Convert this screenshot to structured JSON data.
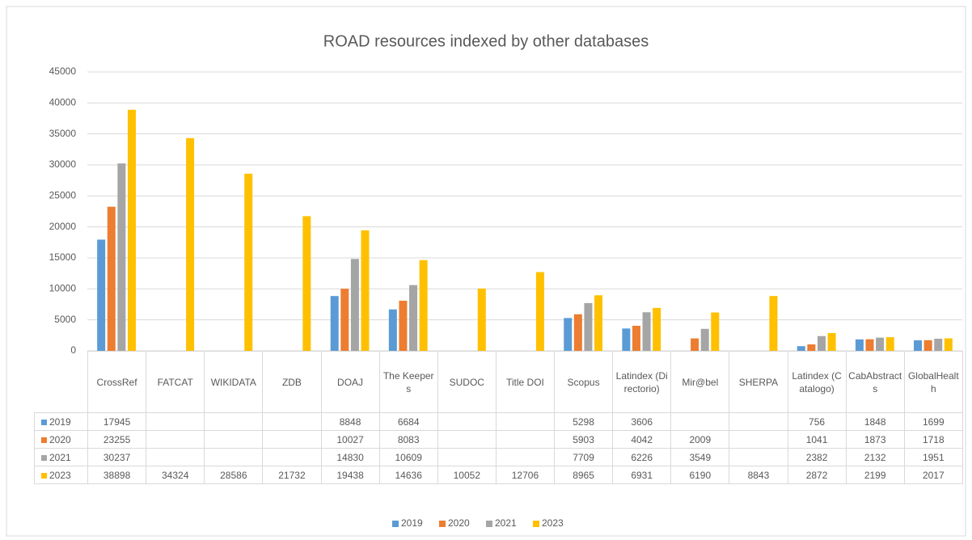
{
  "chart_data": {
    "type": "bar",
    "title": "ROAD resources indexed by other databases",
    "categories": [
      "CrossRef",
      "FATCAT",
      "WIKIDATA",
      "ZDB",
      "DOAJ",
      "The Keepers",
      "SUDOC",
      "Title DOI",
      "Scopus",
      "Latindex (Directorio)",
      "Mir@bel",
      "SHERPA",
      "Latindex (Catalogo)",
      "CabAbstracts",
      "GlobalHealth"
    ],
    "series": [
      {
        "name": "2019",
        "color": "#5b9bd5",
        "values": [
          17945,
          null,
          null,
          null,
          8848,
          6684,
          null,
          null,
          5298,
          3606,
          null,
          null,
          756,
          1848,
          1699
        ]
      },
      {
        "name": "2020",
        "color": "#ed7d31",
        "values": [
          23255,
          null,
          null,
          null,
          10027,
          8083,
          null,
          null,
          5903,
          4042,
          2009,
          null,
          1041,
          1873,
          1718
        ]
      },
      {
        "name": "2021",
        "color": "#a5a5a5",
        "values": [
          30237,
          null,
          null,
          null,
          14830,
          10609,
          null,
          null,
          7709,
          6226,
          3549,
          null,
          2382,
          2132,
          1951
        ]
      },
      {
        "name": "2023",
        "color": "#ffc000",
        "values": [
          38898,
          34324,
          28586,
          21732,
          19438,
          14636,
          10052,
          12706,
          8965,
          6931,
          6190,
          8843,
          2872,
          2199,
          2017
        ]
      }
    ],
    "ylim": [
      0,
      45000
    ],
    "yticks": [
      0,
      5000,
      10000,
      15000,
      20000,
      25000,
      30000,
      35000,
      40000,
      45000
    ],
    "grid": true,
    "legend": "bottom",
    "data_table": true
  }
}
